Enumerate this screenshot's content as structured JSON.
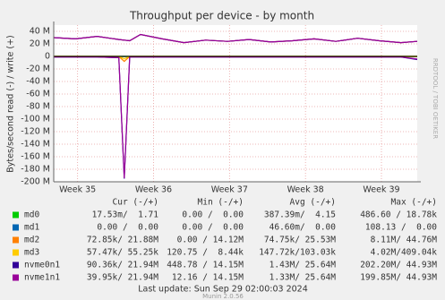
{
  "chart_data": {
    "type": "line",
    "title": "Throughput per device - by month",
    "y_label": "Bytes/second read (-) / write (+)",
    "side_label": "RRDTOOL / TOBI OETIKER",
    "x": [
      0,
      2,
      4,
      6,
      6.5,
      7,
      8,
      10,
      12,
      14,
      16,
      18,
      20,
      22,
      24,
      26,
      28,
      30,
      32,
      33.5
    ],
    "xlim": [
      0,
      33.5
    ],
    "xticks": [
      {
        "value": 2.2,
        "label": "Week 35"
      },
      {
        "value": 9.2,
        "label": "Week 36"
      },
      {
        "value": 16.2,
        "label": "Week 37"
      },
      {
        "value": 23.2,
        "label": "Week 38"
      },
      {
        "value": 30.2,
        "label": "Week 39"
      }
    ],
    "ylim": [
      -200,
      50
    ],
    "yticks": [
      {
        "value": 40,
        "label": "40 M"
      },
      {
        "value": 20,
        "label": "20 M"
      },
      0,
      {
        "value": -20,
        "label": "-20 M"
      },
      {
        "value": -40,
        "label": "-40 M"
      },
      {
        "value": -60,
        "label": "-60 M"
      },
      {
        "value": -80,
        "label": "-80 M"
      },
      {
        "value": -100,
        "label": "-100 M"
      },
      {
        "value": -120,
        "label": "-120 M"
      },
      {
        "value": -140,
        "label": "-140 M"
      },
      {
        "value": -160,
        "label": "-160 M"
      },
      {
        "value": -180,
        "label": "-180 M"
      },
      {
        "value": -200,
        "label": "-200 M"
      }
    ],
    "grid": true,
    "legend_headers": [
      "Cur (-/+)",
      "Min (-/+)",
      "Avg (-/+)",
      "Max (-/+)"
    ],
    "series": [
      {
        "name": "md0",
        "color": "#00cc00",
        "cur": "17.53m/  1.71",
        "min": " 0.00 /  0.00",
        "avg": "387.39m/  4.15",
        "max": "486.60 / 18.78k",
        "values": [
          0,
          0,
          0,
          0,
          0,
          0,
          0,
          0,
          0,
          0,
          0,
          0,
          0,
          0,
          0,
          0,
          0,
          0,
          0,
          0
        ],
        "read_values": [
          0,
          0,
          0,
          0,
          0,
          0,
          0,
          0,
          0,
          0,
          0,
          0,
          0,
          0,
          0,
          0,
          0,
          0,
          0,
          0
        ]
      },
      {
        "name": "md1",
        "color": "#0066b3",
        "cur": " 0.00 /  0.00",
        "min": " 0.00 /  0.00",
        "avg": "46.60m/  0.00",
        "max": "108.13 /  0.00",
        "values": [
          0,
          0,
          0,
          0,
          0,
          0,
          0,
          0,
          0,
          0,
          0,
          0,
          0,
          0,
          0,
          0,
          0,
          0,
          0,
          0
        ],
        "read_values": [
          0,
          0,
          0,
          0,
          0,
          0,
          0,
          0,
          0,
          0,
          0,
          0,
          0,
          0,
          0,
          0,
          0,
          0,
          0,
          0
        ]
      },
      {
        "name": "md2",
        "color": "#ff8000",
        "cur": "72.85k/ 21.88M",
        "min": " 0.00 / 14.12M",
        "avg": "74.75k/ 25.53M",
        "max": " 8.11M/ 44.76M",
        "values": [
          30,
          28,
          32,
          27,
          26,
          25,
          35,
          28,
          22,
          26,
          24,
          27,
          23,
          25,
          28,
          24,
          29,
          25,
          22,
          24
        ],
        "read_values": [
          0,
          0,
          0,
          0,
          -8,
          0,
          0,
          0,
          0,
          0,
          0,
          0,
          0,
          0,
          0,
          0,
          0,
          0,
          0,
          0
        ]
      },
      {
        "name": "md3",
        "color": "#ffcc00",
        "cur": "57.47k/ 55.25k",
        "min": "120.75 /  8.44k",
        "avg": "147.72k/103.03k",
        "max": " 4.02M/409.04k",
        "values": [
          0,
          0,
          0,
          0,
          0,
          0,
          0,
          0,
          0,
          0,
          0,
          0,
          0,
          0,
          0,
          0,
          0,
          0,
          0,
          0
        ],
        "read_values": [
          0,
          0,
          0,
          0,
          -4,
          0,
          0,
          0,
          0,
          0,
          0,
          0,
          0,
          0,
          0,
          0,
          0,
          0,
          0,
          0
        ]
      },
      {
        "name": "nvme0n1",
        "color": "#330099",
        "cur": "90.36k/ 21.94M",
        "min": "448.78 / 14.15M",
        "avg": " 1.43M/ 25.64M",
        "max": "202.20M/ 44.93M",
        "values": [
          30,
          28,
          32,
          27,
          26,
          25,
          35,
          28,
          22,
          26,
          24,
          27,
          23,
          25,
          28,
          24,
          29,
          25,
          22,
          24
        ],
        "read_values": [
          -1,
          -1,
          -1,
          -2,
          -195,
          -1,
          -1,
          -1,
          -1,
          -1,
          -1,
          -1,
          -1,
          -1,
          -1,
          -1,
          -1,
          -1,
          -1,
          -5
        ]
      },
      {
        "name": "nvme1n1",
        "color": "#990099",
        "cur": "39.95k/ 21.94M",
        "min": "12.16 / 14.15M",
        "avg": " 1.33M/ 25.64M",
        "max": "199.85M/ 44.93M",
        "values": [
          30,
          28,
          32,
          27,
          26,
          25,
          35,
          28,
          22,
          26,
          24,
          27,
          23,
          25,
          28,
          24,
          29,
          25,
          22,
          24
        ],
        "read_values": [
          -1,
          -1,
          -1,
          -2,
          -194,
          -1,
          -1,
          -1,
          -1,
          -1,
          -1,
          -1,
          -1,
          -1,
          -1,
          -1,
          -1,
          -1,
          -1,
          -4
        ]
      }
    ],
    "last_update": "Last update: Sun Sep 29 02:00:03 2024",
    "footer": "Munin 2.0.56"
  }
}
